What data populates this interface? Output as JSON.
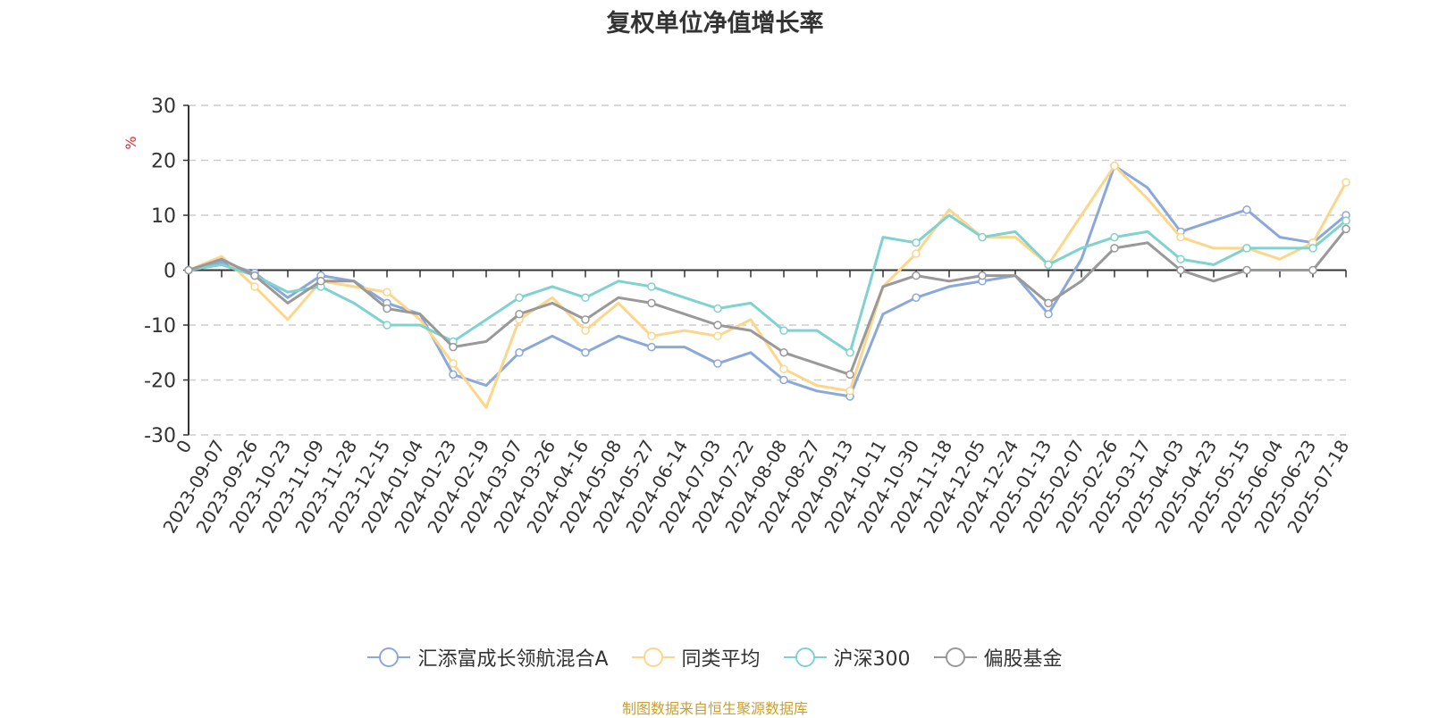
{
  "footer": {
    "source": "制图数据来自恒生聚源数据库"
  },
  "chart_data": {
    "type": "line",
    "title": "复权单位净值增长率",
    "ylabel": "%",
    "xlabel": "",
    "ylim": [
      -30,
      30
    ],
    "yticks": [
      30,
      20,
      10,
      0,
      -10,
      -20,
      -30
    ],
    "grid": true,
    "legend_position": "bottom",
    "x": [
      "0",
      "2023-09-07",
      "2023-09-26",
      "2023-10-23",
      "2023-11-09",
      "2023-11-28",
      "2023-12-15",
      "2024-01-04",
      "2024-01-23",
      "2024-02-19",
      "2024-03-07",
      "2024-03-26",
      "2024-04-16",
      "2024-05-08",
      "2024-05-27",
      "2024-06-14",
      "2024-07-03",
      "2024-07-22",
      "2024-08-08",
      "2024-08-27",
      "2024-09-13",
      "2024-10-11",
      "2024-10-30",
      "2024-11-18",
      "2024-12-05",
      "2024-12-24",
      "2025-01-13",
      "2025-02-07",
      "2025-02-26",
      "2025-03-17",
      "2025-04-03",
      "2025-04-23",
      "2025-05-15",
      "2025-06-04",
      "2025-06-23",
      "2025-07-18"
    ],
    "series": [
      {
        "name": "汇添富成长领航混合A",
        "color": "#8ba8dc",
        "values": [
          0,
          1.5,
          -0.5,
          -5,
          -1,
          -2,
          -6,
          -8,
          -19,
          -21,
          -15,
          -12,
          -15,
          -12,
          -14,
          -14,
          -17,
          -15,
          -20,
          -22,
          -23,
          -8,
          -5,
          -3,
          -2,
          -1,
          -8,
          2,
          19,
          15,
          7,
          9,
          11,
          6,
          5,
          10
        ]
      },
      {
        "name": "同类平均",
        "color": "#fcd68a",
        "values": [
          0,
          2.5,
          -3,
          -9,
          -2,
          -3,
          -4,
          -9,
          -17,
          -25,
          -9,
          -5,
          -11,
          -6,
          -12,
          -11,
          -12,
          -9,
          -18,
          -21,
          -22,
          -3,
          3,
          11,
          6,
          6,
          1,
          10,
          19,
          13,
          6,
          4,
          4,
          2,
          5,
          16
        ]
      },
      {
        "name": "沪深300",
        "color": "#7fd2cf",
        "values": [
          0,
          1,
          -1,
          -4,
          -3,
          -6,
          -10,
          -10,
          -13,
          -9,
          -5,
          -3,
          -5,
          -2,
          -3,
          -5,
          -7,
          -6,
          -11,
          -11,
          -15,
          6,
          5,
          10,
          6,
          7,
          1,
          4,
          6,
          7,
          2,
          1,
          4,
          4,
          4,
          9
        ]
      },
      {
        "name": "偏股基金",
        "color": "#999999",
        "values": [
          0,
          2,
          -1,
          -6,
          -2,
          -2,
          -7,
          -8,
          -14,
          -13,
          -8,
          -6,
          -9,
          -5,
          -6,
          -8,
          -10,
          -11,
          -15,
          -17,
          -19,
          -3,
          -1,
          -2,
          -1,
          -1,
          -6,
          -2,
          4,
          5,
          0,
          -2,
          0,
          0,
          0,
          7.5
        ]
      }
    ]
  }
}
